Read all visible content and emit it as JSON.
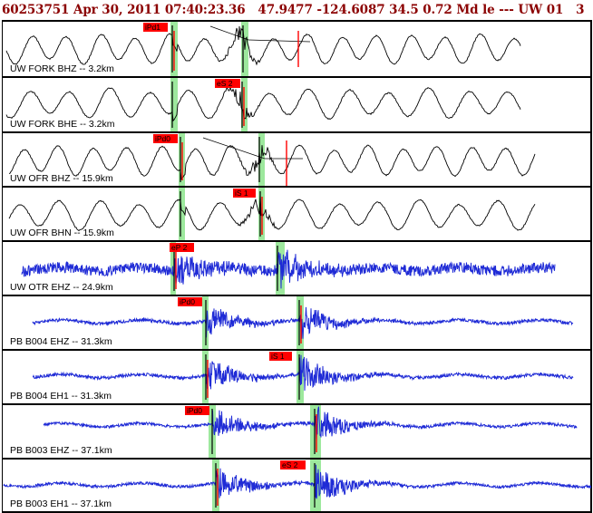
{
  "header": {
    "event_id": "60253751",
    "date": "Apr 30, 2011",
    "time": "07:40:23.36",
    "lat": "47.9477",
    "lon": "-124.6087",
    "depth": "34.5",
    "magnitude": "0.72 Md",
    "quality": "le ---",
    "network": "UW 01",
    "trailing": "3"
  },
  "colors": {
    "header_text": "#8b0000",
    "short_period_trace": "#000000",
    "broadband_trace": "#1f2bd6",
    "pick_tag": "#ff0000",
    "window_highlight": "#9de89d",
    "marker": "#ff0000"
  },
  "panels": [
    {
      "station": "UW FORK BHZ -- 3.2km",
      "pick": "iPd1",
      "trace": "short",
      "amp": 1.0,
      "onset": 0.29,
      "s_arrival": 0.41
    },
    {
      "station": "UW FORK BHE -- 3.2km",
      "pick": "eS 2",
      "trace": "short",
      "amp": 1.0,
      "onset": 0.29,
      "s_arrival": 0.41
    },
    {
      "station": "UW OFR BHZ -- 15.9km",
      "pick": "iPd0",
      "trace": "short",
      "amp": 1.0,
      "onset": 0.31,
      "s_arrival": 0.44
    },
    {
      "station": "UW OFR BHN -- 15.9km",
      "pick": "iS 1",
      "trace": "short",
      "amp": 1.0,
      "onset": 0.31,
      "s_arrival": 0.44
    },
    {
      "station": "UW OTR EHZ -- 24.9km",
      "pick": "eP 2",
      "trace": "broad",
      "amp": 1.0,
      "onset": 0.33,
      "s_arrival": 0.48
    },
    {
      "station": "PB B004 EHZ -- 31.3km",
      "pick": "iPd0",
      "trace": "broad",
      "amp": 0.6,
      "onset": 0.35,
      "s_arrival": 0.51
    },
    {
      "station": "PB B004 EH1 -- 31.3km",
      "pick": "iS 1",
      "trace": "broad",
      "amp": 0.6,
      "onset": 0.35,
      "s_arrival": 0.51
    },
    {
      "station": "PB B003 EHZ -- 37.1km",
      "pick": "iPd0",
      "trace": "broad",
      "amp": 0.5,
      "onset": 0.36,
      "s_arrival": 0.53
    },
    {
      "station": "PB B003 EH1 -- 37.1km",
      "pick": "eS 2",
      "trace": "broad",
      "amp": 0.5,
      "onset": 0.36,
      "s_arrival": 0.53
    }
  ]
}
